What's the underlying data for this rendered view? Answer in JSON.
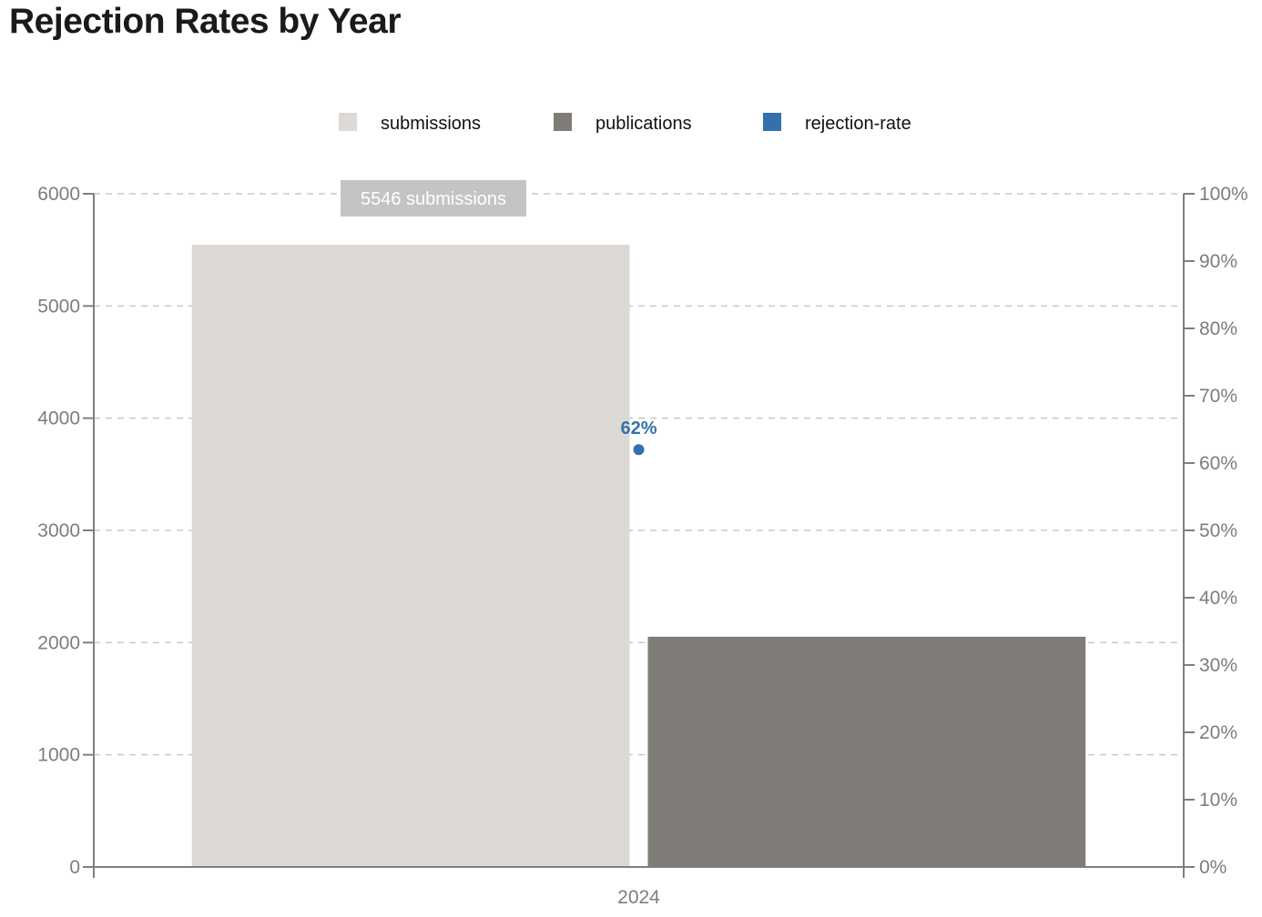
{
  "title": "Rejection Rates by Year",
  "chart_data": {
    "type": "bar",
    "categories": [
      "2024"
    ],
    "series": [
      {
        "name": "submissions",
        "values": [
          5546
        ],
        "axis": "left",
        "kind": "bar",
        "color": "#dddad6"
      },
      {
        "name": "publications",
        "values": [
          2052
        ],
        "axis": "left",
        "kind": "bar",
        "color": "#7f7c78"
      },
      {
        "name": "rejection-rate",
        "values": [
          62
        ],
        "axis": "right",
        "kind": "point",
        "color": "#3371ac"
      }
    ],
    "y_left": {
      "min": 0,
      "max": 6000,
      "ticks": [
        0,
        1000,
        2000,
        3000,
        4000,
        5000,
        6000
      ]
    },
    "y_right": {
      "min": 0,
      "max": 100,
      "unit": "%",
      "ticks": [
        0,
        10,
        20,
        30,
        40,
        50,
        60,
        70,
        80,
        90,
        100
      ]
    },
    "tooltip": "5546 submissions",
    "point_label": "62%",
    "legend_position": "top-center",
    "grid": "dashed horizontal",
    "xlabel": "",
    "ylabel": ""
  }
}
